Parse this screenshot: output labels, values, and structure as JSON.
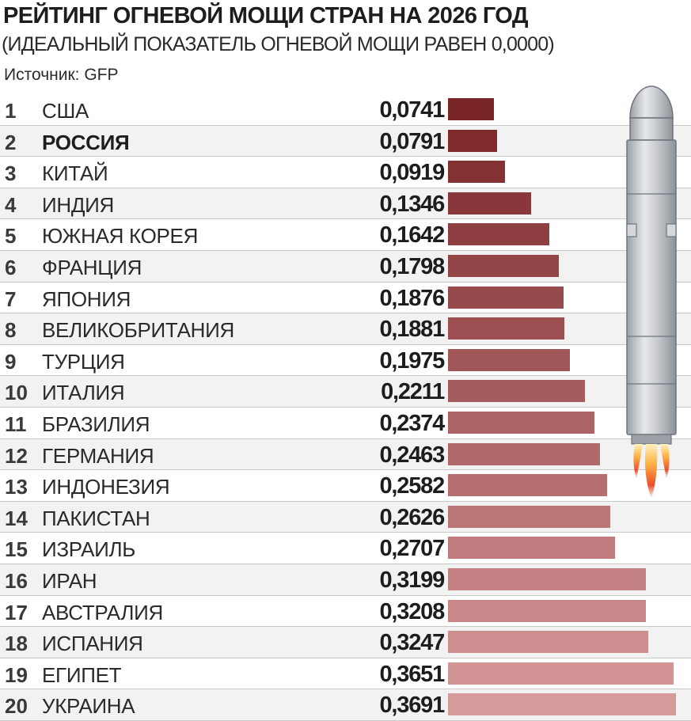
{
  "title": "РЕЙТИНГ ОГНЕВОЙ МОЩИ СТРАН НА 2026 ГОД",
  "subtitle": "(ИДЕАЛЬНЫЙ ПОКАЗАТЕЛЬ ОГНЕВОЙ МОЩИ РАВЕН 0,0000)",
  "source": "Источник: GFP",
  "colors": {
    "bar_darkest": "#7a2528",
    "bar_lightest": "#d79a9b"
  },
  "chart_data": {
    "type": "bar",
    "orientation": "horizontal",
    "title": "РЕЙТИНГ ОГНЕВОЙ МОЩИ СТРАН НА 2026 ГОД",
    "subtitle": "(ИДЕАЛЬНЫЙ ПОКАЗАТЕЛЬ ОГНЕВОЙ МОЩИ РАВЕН 0,0000)",
    "source": "Источник: GFP",
    "grid": false,
    "legend": "none",
    "highlighted": [
      "РОССИЯ"
    ],
    "ranks": [
      "1",
      "2",
      "3",
      "4",
      "5",
      "6",
      "7",
      "8",
      "9",
      "10",
      "11",
      "12",
      "13",
      "14",
      "15",
      "16",
      "17",
      "18",
      "19",
      "20"
    ],
    "categories": [
      "США",
      "РОССИЯ",
      "КИТАЙ",
      "ИНДИЯ",
      "ЮЖНАЯ КОРЕЯ",
      "ФРАНЦИЯ",
      "ЯПОНИЯ",
      "ВЕЛИКОБРИТАНИЯ",
      "ТУРЦИЯ",
      "ИТАЛИЯ",
      "БРАЗИЛИЯ",
      "ГЕРМАНИЯ",
      "ИНДОНЕЗИЯ",
      "ПАКИСТАН",
      "ИЗРАИЛЬ",
      "ИРАН",
      "АВСТРАЛИЯ",
      "ИСПАНИЯ",
      "ЕГИПЕТ",
      "УКРАИНА"
    ],
    "labels": [
      "0,0741",
      "0,0791",
      "0,0919",
      "0,1346",
      "0,1642",
      "0,1798",
      "0,1876",
      "0,1881",
      "0,1975",
      "0,2211",
      "0,2374",
      "0,2463",
      "0,2582",
      "0,2626",
      "0,2707",
      "0,3199",
      "0,3208",
      "0,3247",
      "0,3651",
      "0,3691"
    ],
    "values": [
      0.0741,
      0.0791,
      0.0919,
      0.1346,
      0.1642,
      0.1798,
      0.1876,
      0.1881,
      0.1975,
      0.2211,
      0.2374,
      0.2463,
      0.2582,
      0.2626,
      0.2707,
      0.3199,
      0.3208,
      0.3247,
      0.3651,
      0.3691
    ]
  }
}
